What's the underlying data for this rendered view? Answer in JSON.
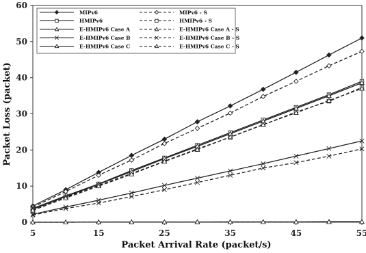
{
  "chart_data": {
    "type": "line",
    "title": "",
    "xlabel": "Packet Arrival Rate (packet/s)",
    "ylabel": "Packet Loss (packet)",
    "xlim": [
      5,
      55
    ],
    "ylim": [
      0,
      60
    ],
    "xticks": [
      "5",
      "15",
      "25",
      "35",
      "45",
      "55"
    ],
    "yticks": [
      "0",
      "10",
      "20",
      "30",
      "40",
      "50",
      "60"
    ],
    "x": [
      5,
      10,
      15,
      20,
      25,
      30,
      35,
      40,
      45,
      50,
      55
    ],
    "grid": false,
    "legend_position": "top-left",
    "series": [
      {
        "name": "MIPv6",
        "style": "solid",
        "marker": "diamond",
        "values": [
          4.5,
          9,
          13.8,
          18.5,
          23,
          27.8,
          32.2,
          36.8,
          41.5,
          46.3,
          51
        ]
      },
      {
        "name": "MIPv6 - S",
        "style": "dashed",
        "marker": "diamond-open",
        "values": [
          4.2,
          8.5,
          13,
          17.2,
          21.8,
          26,
          30.2,
          34.8,
          39,
          43.3,
          47.3
        ]
      },
      {
        "name": "HMIPv6",
        "style": "solid",
        "marker": "square-open",
        "values": [
          3.8,
          7.3,
          10.6,
          14.3,
          17.8,
          21.3,
          24.8,
          28.3,
          31.8,
          35.3,
          39
        ]
      },
      {
        "name": "HMIPv6 - S",
        "style": "dashed",
        "marker": "square-open",
        "values": [
          3.6,
          6.9,
          10.2,
          13.5,
          16.9,
          20.3,
          23.5,
          27,
          30.5,
          33.5,
          37.3
        ]
      },
      {
        "name": "E-HMIPv6 Case A",
        "style": "solid",
        "marker": "triangle",
        "values": [
          3.6,
          7.1,
          10.5,
          14,
          17.6,
          21,
          24.5,
          28,
          31.5,
          35,
          38.6
        ]
      },
      {
        "name": "E-HMIPv6 Case A - S",
        "style": "dashed",
        "marker": "triangle",
        "values": [
          3.3,
          6.7,
          10,
          13.3,
          16.8,
          20.1,
          23.6,
          27,
          30.3,
          33.7,
          37
        ]
      },
      {
        "name": "E-HMIPv6 Case B",
        "style": "solid",
        "marker": "x",
        "values": [
          2.2,
          4.2,
          6.1,
          8.1,
          10.2,
          12.2,
          14.2,
          16.2,
          18.3,
          20.4,
          22.5
        ]
      },
      {
        "name": "E-HMIPv6 Case B - S",
        "style": "dashed",
        "marker": "x",
        "values": [
          2,
          3.8,
          5.3,
          7.1,
          9,
          11,
          13,
          15,
          16.5,
          18.3,
          20.3
        ]
      },
      {
        "name": "E-HMIPv6 Case C",
        "style": "solid",
        "marker": "triangle",
        "values": [
          0,
          0,
          0.05,
          0.05,
          0.05,
          0.05,
          0.1,
          0.1,
          0.1,
          0.15,
          0.15
        ]
      },
      {
        "name": "E-HMIPv6 Case C - S",
        "style": "dashed",
        "marker": "triangle",
        "values": [
          0,
          0,
          0.05,
          0.05,
          0.05,
          0.05,
          0.1,
          0.1,
          0.1,
          0.1,
          0.15
        ]
      }
    ]
  }
}
